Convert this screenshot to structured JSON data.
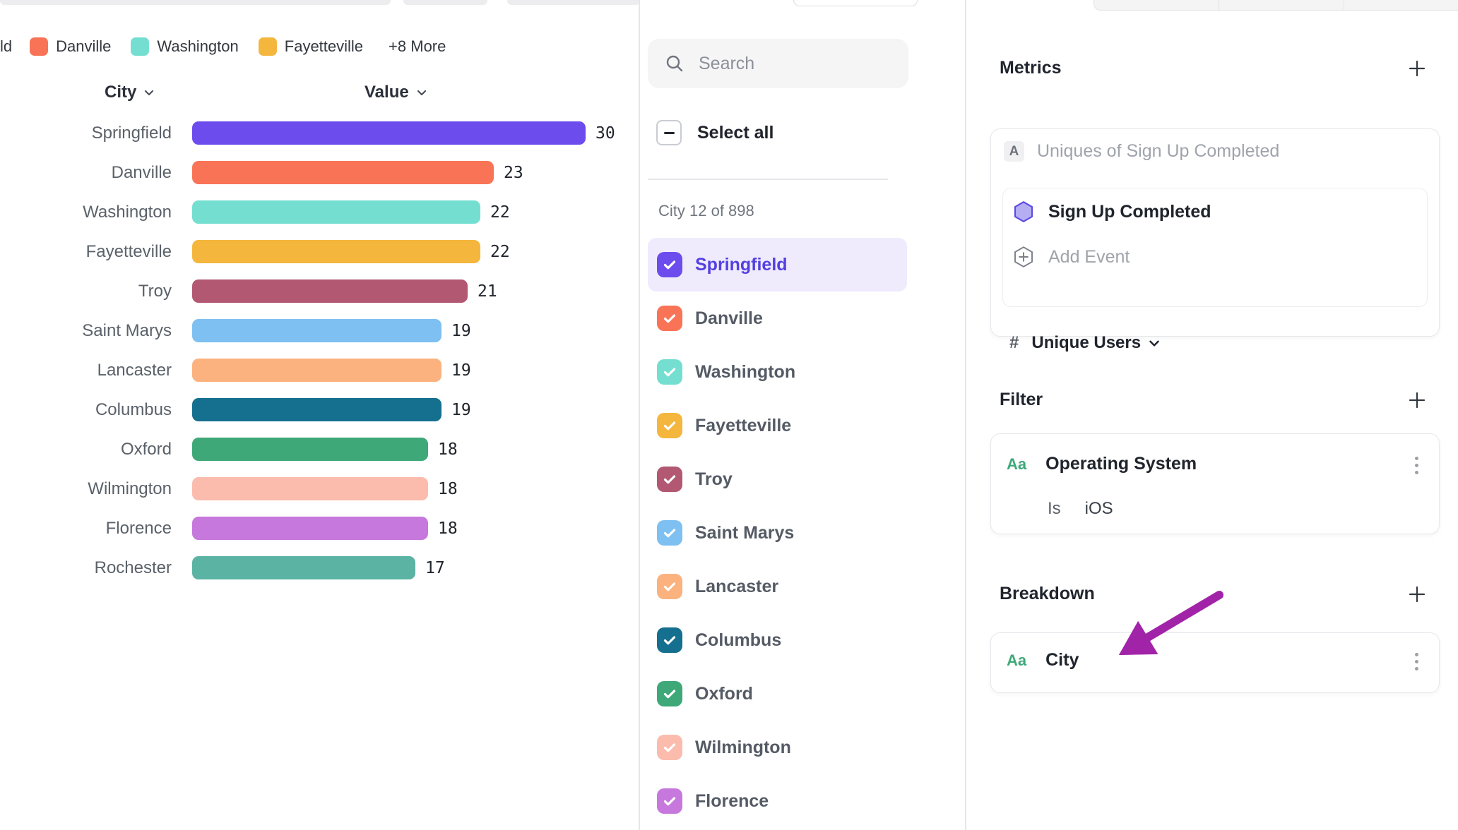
{
  "chart_data": {
    "type": "bar",
    "orientation": "horizontal",
    "title": "",
    "xlabel": "Value",
    "ylabel": "City",
    "xlim": [
      0,
      30
    ],
    "grid": false,
    "column_headers": {
      "category": "City",
      "value": "Value"
    },
    "categories": [
      "Springfield",
      "Danville",
      "Washington",
      "Fayetteville",
      "Troy",
      "Saint Marys",
      "Lancaster",
      "Columbus",
      "Oxford",
      "Wilmington",
      "Florence",
      "Rochester"
    ],
    "values": [
      30,
      23,
      22,
      22,
      21,
      19,
      19,
      19,
      18,
      18,
      18,
      17
    ],
    "colors": [
      "#6C4CEC",
      "#F97456",
      "#74DFD0",
      "#F4B63D",
      "#B25873",
      "#7EC0F1",
      "#FBB27E",
      "#156F8E",
      "#3EA878",
      "#FBBCAD",
      "#C678DC",
      "#5AB3A3"
    ],
    "legend": {
      "position": "top",
      "truncated_left_label": "ld",
      "items": [
        {
          "label": "Danville",
          "color": "#F97456"
        },
        {
          "label": "Washington",
          "color": "#74DFD0"
        },
        {
          "label": "Fayetteville",
          "color": "#F4B63D"
        }
      ],
      "overflow_label": "+8 More"
    }
  },
  "city_selector": {
    "search_placeholder": "Search",
    "select_all_label": "Select all",
    "count_label": "City 12 of 898",
    "items": [
      {
        "label": "Springfield",
        "color": "#6C4CEC",
        "checked": true,
        "selected": true
      },
      {
        "label": "Danville",
        "color": "#F97456",
        "checked": true,
        "selected": false
      },
      {
        "label": "Washington",
        "color": "#74DFD0",
        "checked": true,
        "selected": false
      },
      {
        "label": "Fayetteville",
        "color": "#F4B63D",
        "checked": true,
        "selected": false
      },
      {
        "label": "Troy",
        "color": "#B25873",
        "checked": true,
        "selected": false
      },
      {
        "label": "Saint Marys",
        "color": "#7EC0F1",
        "checked": true,
        "selected": false
      },
      {
        "label": "Lancaster",
        "color": "#FBB27E",
        "checked": true,
        "selected": false
      },
      {
        "label": "Columbus",
        "color": "#156F8E",
        "checked": true,
        "selected": false
      },
      {
        "label": "Oxford",
        "color": "#3EA878",
        "checked": true,
        "selected": false
      },
      {
        "label": "Wilmington",
        "color": "#FBBCAD",
        "checked": true,
        "selected": false
      },
      {
        "label": "Florence",
        "color": "#C678DC",
        "checked": true,
        "selected": false
      }
    ]
  },
  "inspector": {
    "metrics": {
      "title": "Metrics",
      "row_badge": "A",
      "row_label": "Uniques of Sign Up Completed",
      "event_name": "Sign Up Completed",
      "add_event_label": "Add Event",
      "measure_prefix": "#",
      "measure_label": "Unique Users"
    },
    "filter": {
      "title": "Filter",
      "type_badge": "Aa",
      "property_name": "Operating System",
      "operator": "Is",
      "value": "iOS"
    },
    "breakdown": {
      "title": "Breakdown",
      "type_badge": "Aa",
      "property_name": "City"
    }
  },
  "colors": {
    "accent_indigo": "#6C4CEC",
    "selected_row_bg": "#EFEBFD",
    "selected_text": "#5340E0",
    "annotation_arrow": "#A124A8",
    "badge_green": "#3EA878"
  }
}
